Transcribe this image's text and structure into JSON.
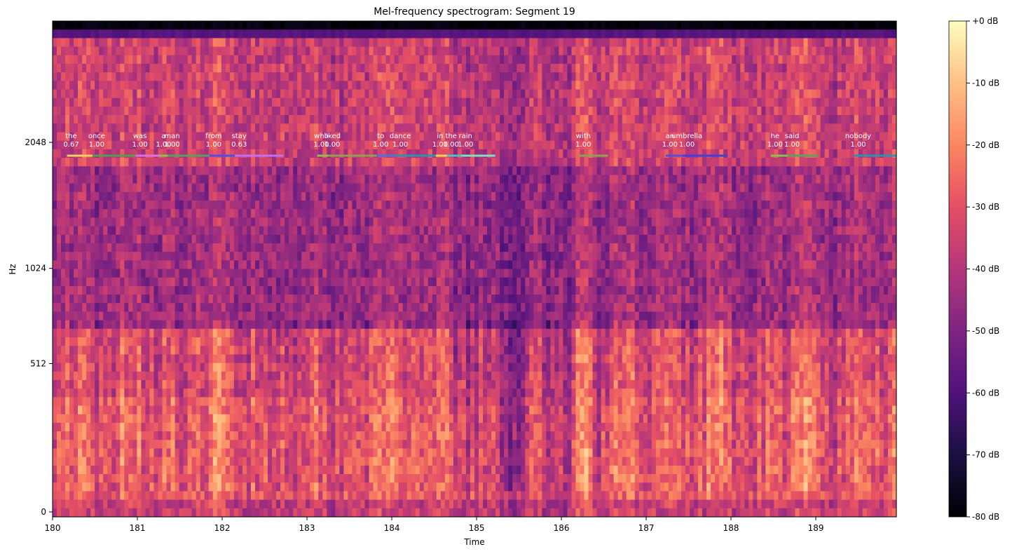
{
  "chart_data": {
    "type": "heatmap",
    "title": "Mel-frequency spectrogram: Segment 19",
    "xlabel": "Time",
    "ylabel": "Hz",
    "xlim": [
      180,
      189.95
    ],
    "x_ticks": [
      180,
      181,
      182,
      183,
      184,
      185,
      186,
      187,
      188,
      189
    ],
    "y_scale": "mel",
    "y_ticks": [
      {
        "value": 0,
        "label": "0"
      },
      {
        "value": 512,
        "label": "512"
      },
      {
        "value": 1024,
        "label": "1024"
      },
      {
        "value": 2048,
        "label": "2048"
      }
    ],
    "colormap": "magma",
    "colorbar": {
      "range": [
        -80,
        0
      ],
      "ticks": [
        {
          "value": 0,
          "label": "+0 dB"
        },
        {
          "value": -10,
          "label": "-10 dB"
        },
        {
          "value": -20,
          "label": "-20 dB"
        },
        {
          "value": -30,
          "label": "-30 dB"
        },
        {
          "value": -40,
          "label": "-40 dB"
        },
        {
          "value": -50,
          "label": "-50 dB"
        },
        {
          "value": -60,
          "label": "-60 dB"
        },
        {
          "value": -70,
          "label": "-70 dB"
        },
        {
          "value": -80,
          "label": "-80 dB"
        }
      ]
    },
    "word_annotations": [
      {
        "word": "the",
        "score": "0.67",
        "start": 180.17,
        "end": 180.47,
        "color": "#f0d060"
      },
      {
        "word": "once",
        "score": "1.00",
        "start": 180.47,
        "end": 180.98,
        "color": "#50a050"
      },
      {
        "word": "was",
        "score": "1.00",
        "start": 180.98,
        "end": 181.34,
        "color": "#e070e0"
      },
      {
        "word": "a",
        "score": "1.00",
        "start": 181.26,
        "end": 181.46,
        "color": "#8cbf50"
      },
      {
        "word": "man",
        "score": "1.00",
        "start": 181.36,
        "end": 181.85,
        "color": "#58a060"
      },
      {
        "word": "from",
        "score": "1.00",
        "start": 181.85,
        "end": 182.15,
        "color": "#5050e0"
      },
      {
        "word": "stay",
        "score": "0.63",
        "start": 182.15,
        "end": 182.72,
        "color": "#c070f0"
      },
      {
        "word": "who",
        "score": "1.00",
        "start": 183.12,
        "end": 183.32,
        "color": "#8cbf50"
      },
      {
        "word": "liked",
        "score": "1.00",
        "start": 183.25,
        "end": 183.82,
        "color": "#90a050"
      },
      {
        "word": "to",
        "score": "1.00",
        "start": 183.82,
        "end": 184.05,
        "color": "#5070e0"
      },
      {
        "word": "dance",
        "score": "1.00",
        "start": 184.05,
        "end": 184.52,
        "color": "#3090b0"
      },
      {
        "word": "in",
        "score": "1.00",
        "start": 184.52,
        "end": 184.72,
        "color": "#f0d060"
      },
      {
        "word": "the",
        "score": "1.00",
        "start": 184.65,
        "end": 184.85,
        "color": "#50c0c0"
      },
      {
        "word": "rain",
        "score": "1.00",
        "start": 184.82,
        "end": 185.22,
        "color": "#80e0c0"
      },
      {
        "word": "with",
        "score": "1.00",
        "start": 186.21,
        "end": 186.55,
        "color": "#90a050"
      },
      {
        "word": "an",
        "score": "1.00",
        "start": 187.23,
        "end": 187.43,
        "color": "#5050e0"
      },
      {
        "word": "umbrella",
        "score": "1.00",
        "start": 187.43,
        "end": 187.96,
        "color": "#4040d8"
      },
      {
        "word": "he",
        "score": "1.00",
        "start": 188.47,
        "end": 188.67,
        "color": "#8cbf50"
      },
      {
        "word": "said",
        "score": "1.00",
        "start": 188.67,
        "end": 189.03,
        "color": "#60a060"
      },
      {
        "word": "nobody",
        "score": "1.00",
        "start": 189.45,
        "end": 189.95,
        "color": "#3090b0"
      }
    ]
  }
}
